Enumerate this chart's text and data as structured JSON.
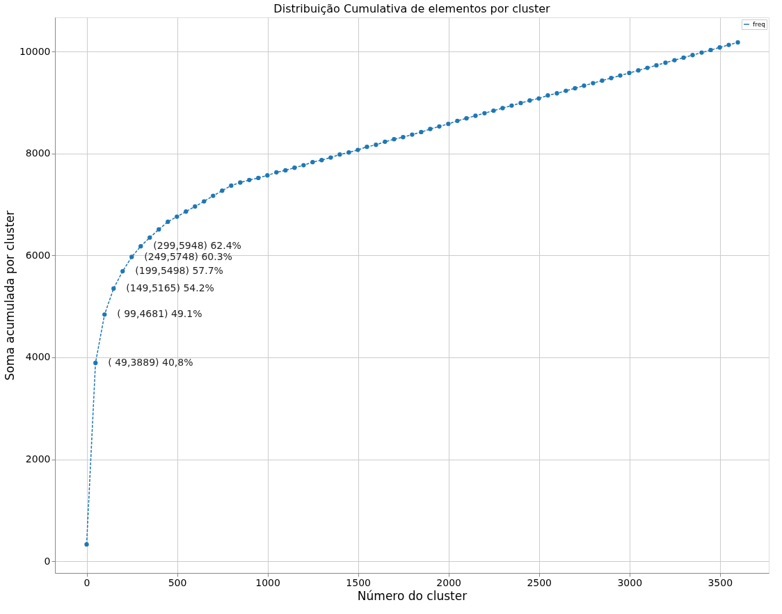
{
  "chart_data": {
    "type": "line",
    "title": "Distribuição Cumulativa de elementos por cluster",
    "xlabel": "Número do cluster",
    "ylabel": "Soma acumulada por cluster",
    "xlim": [
      -175,
      3770
    ],
    "ylim": [
      -230,
      10670
    ],
    "xticks": [
      0,
      500,
      1000,
      1500,
      2000,
      2500,
      3000,
      3500
    ],
    "yticks": [
      0,
      2000,
      4000,
      6000,
      8000,
      10000
    ],
    "grid": true,
    "legend": "top right",
    "marker": "circle",
    "line_style": "dashed",
    "series": [
      {
        "name": "freq",
        "color": "#1f77b4",
        "x": [
          0,
          49,
          99,
          149,
          199,
          249,
          299,
          349,
          399,
          449,
          499,
          549,
          599,
          649,
          699,
          749,
          799,
          849,
          899,
          949,
          999,
          1049,
          1099,
          1149,
          1199,
          1249,
          1299,
          1349,
          1399,
          1449,
          1499,
          1549,
          1599,
          1649,
          1699,
          1749,
          1799,
          1849,
          1899,
          1949,
          1999,
          2049,
          2099,
          2149,
          2199,
          2249,
          2299,
          2349,
          2399,
          2449,
          2499,
          2549,
          2599,
          2649,
          2699,
          2749,
          2799,
          2849,
          2899,
          2949,
          2999,
          3049,
          3099,
          3149,
          3199,
          3249,
          3299,
          3349,
          3399,
          3449,
          3499,
          3549,
          3599
        ],
        "values": [
          330,
          3890,
          4840,
          5350,
          5690,
          5970,
          6180,
          6350,
          6510,
          6660,
          6760,
          6860,
          6960,
          7060,
          7170,
          7270,
          7370,
          7430,
          7480,
          7520,
          7570,
          7630,
          7670,
          7720,
          7770,
          7830,
          7870,
          7920,
          7980,
          8020,
          8070,
          8130,
          8170,
          8230,
          8280,
          8320,
          8370,
          8420,
          8480,
          8530,
          8580,
          8640,
          8690,
          8740,
          8790,
          8840,
          8890,
          8940,
          8990,
          9040,
          9080,
          9140,
          9180,
          9230,
          9280,
          9330,
          9380,
          9430,
          9480,
          9530,
          9580,
          9630,
          9680,
          9730,
          9780,
          9830,
          9880,
          9930,
          9980,
          10030,
          10080,
          10130,
          10180
        ]
      }
    ],
    "annotations": [
      "( 49,3889) 40,8%",
      "( 99,4681) 49.1%",
      "(149,5165) 54.2%",
      "(199,5498) 57.7%",
      "(249,5748) 60.3%",
      "(299,5948) 62.4%"
    ]
  }
}
